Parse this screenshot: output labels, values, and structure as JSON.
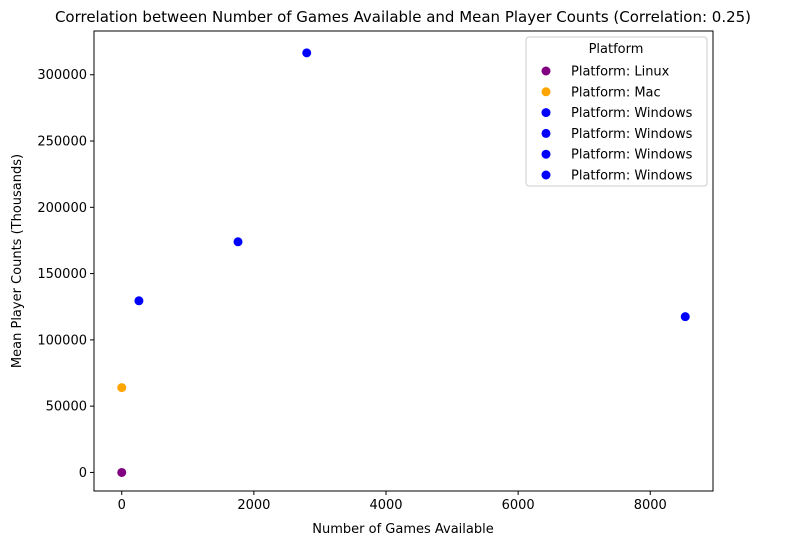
{
  "chart_data": {
    "type": "scatter",
    "title": "Correlation between Number of Games Available and Mean Player Counts (Correlation: 0.25)",
    "xlabel": "Number of Games Available",
    "ylabel": "Mean Player Counts (Thousands)",
    "xlim": [
      -420,
      8950
    ],
    "ylim": [
      -14000,
      333000
    ],
    "xticks": [
      0,
      2000,
      4000,
      6000,
      8000
    ],
    "yticks": [
      0,
      50000,
      100000,
      150000,
      200000,
      250000,
      300000
    ],
    "grid": false,
    "legend": {
      "title": "Platform",
      "position": "top-right"
    },
    "series": [
      {
        "name": "Platform: Linux",
        "color": "#800080",
        "points": [
          {
            "x": 0,
            "y": 0
          }
        ]
      },
      {
        "name": "Platform: Mac",
        "color": "#FFA500",
        "points": [
          {
            "x": 0,
            "y": 64000
          }
        ]
      },
      {
        "name": "Platform: Windows",
        "color": "#0000FF",
        "points": [
          {
            "x": 260,
            "y": 129500
          }
        ]
      },
      {
        "name": "Platform: Windows",
        "color": "#0000FF",
        "points": [
          {
            "x": 1760,
            "y": 174000
          }
        ]
      },
      {
        "name": "Platform: Windows",
        "color": "#0000FF",
        "points": [
          {
            "x": 2800,
            "y": 316500
          }
        ]
      },
      {
        "name": "Platform: Windows",
        "color": "#0000FF",
        "points": [
          {
            "x": 8530,
            "y": 117500
          }
        ]
      }
    ]
  }
}
